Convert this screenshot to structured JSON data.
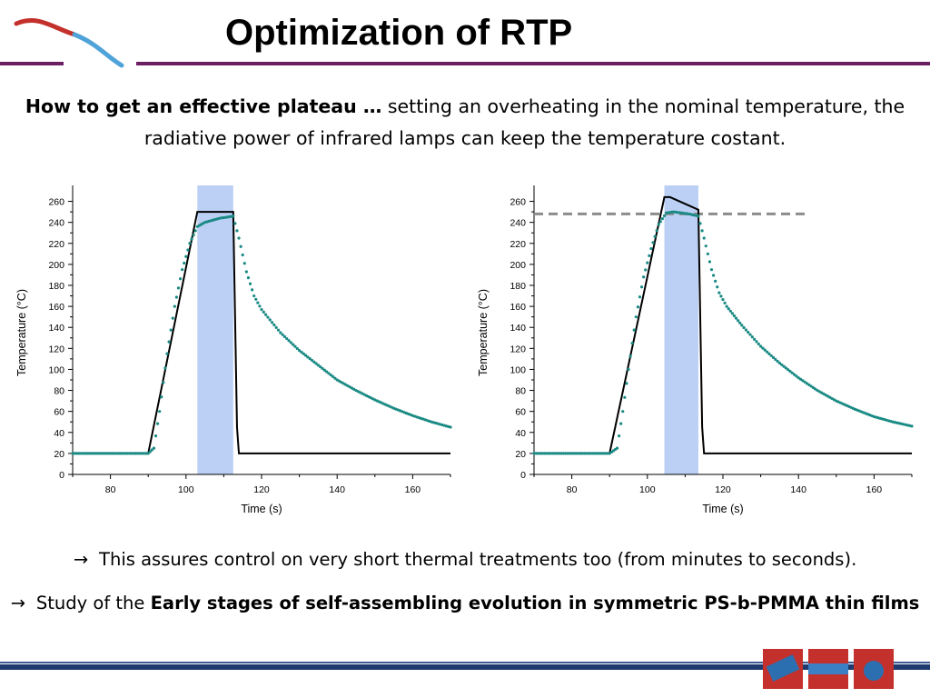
{
  "slide": {
    "title": "Optimization of RTP",
    "intro_bold": "How to get an effective plateau …",
    "intro_rest": " setting an overheating in the nominal temperature, the radiative power of infrared lamps can keep the temperature costant.",
    "bullet_arrow": "→",
    "bullet1": "This assures  control on very short thermal treatments too (from minutes to seconds).",
    "bullet2_prefix": "Study of the ",
    "bullet2_bold": "Early stages of self-assembling evolution in symmetric PS-b-PMMA thin  films"
  },
  "colors": {
    "title_rule": "#6b1f62",
    "footer_bar": "#1f3a6e",
    "setpoint_line": "#000000",
    "measured_points": "#1a8a84",
    "plateau_band": "#bcd0f5",
    "overheat_reference": "#8c8c8c"
  },
  "chart_data": [
    {
      "type": "line",
      "xlabel": "Time (s)",
      "ylabel": "Temperature (°C)",
      "xlim": [
        70,
        170
      ],
      "ylim": [
        0,
        270
      ],
      "xticks": [
        80,
        100,
        120,
        140,
        160
      ],
      "yticks": [
        0,
        20,
        40,
        60,
        80,
        100,
        120,
        140,
        160,
        180,
        200,
        220,
        240,
        260
      ],
      "grid": false,
      "shaded_interval": [
        103,
        112.5
      ],
      "series": [
        {
          "style": "line",
          "color": "#000000",
          "x": [
            70,
            90,
            103,
            112.5,
            113.5,
            114,
            170
          ],
          "y": [
            20,
            20,
            250,
            250,
            45,
            20,
            20
          ]
        },
        {
          "style": "points",
          "color": "#1a8a84",
          "x": [
            70,
            75,
            80,
            85,
            90,
            91.5,
            93,
            95,
            97,
            99,
            101,
            103,
            105,
            107,
            109,
            111,
            112.5,
            114,
            116,
            118,
            120,
            125,
            130,
            135,
            140,
            145,
            150,
            155,
            160,
            165,
            170
          ],
          "y": [
            20,
            20,
            20,
            20,
            20,
            25,
            60,
            115,
            160,
            195,
            220,
            236,
            240,
            242,
            244,
            245,
            246,
            225,
            193,
            170,
            157,
            135,
            118,
            104,
            90,
            80,
            71,
            63,
            56,
            50,
            45
          ]
        }
      ]
    },
    {
      "type": "line",
      "xlabel": "Time (s)",
      "ylabel": "Temperature (°C)",
      "xlim": [
        70,
        170
      ],
      "ylim": [
        0,
        270
      ],
      "xticks": [
        80,
        100,
        120,
        140,
        160
      ],
      "yticks": [
        0,
        20,
        40,
        60,
        80,
        100,
        120,
        140,
        160,
        180,
        200,
        220,
        240,
        260
      ],
      "grid": false,
      "shaded_interval": [
        104.5,
        113.5
      ],
      "reference_line": {
        "y": 248,
        "x": [
          70,
          142
        ],
        "style": "dashed"
      },
      "series": [
        {
          "style": "line",
          "color": "#000000",
          "x": [
            70,
            90,
            104.5,
            106,
            113.5,
            114.5,
            115,
            170
          ],
          "y": [
            20,
            20,
            264,
            264,
            252,
            45,
            20,
            20
          ]
        },
        {
          "style": "points",
          "color": "#1a8a84",
          "x": [
            70,
            75,
            80,
            85,
            90,
            92,
            93.5,
            95,
            97,
            99,
            101,
            103,
            105,
            107,
            109,
            111,
            113.5,
            115,
            117,
            119,
            121,
            125,
            130,
            135,
            140,
            145,
            150,
            155,
            160,
            165,
            170
          ],
          "y": [
            20,
            20,
            20,
            20,
            20,
            25,
            60,
            100,
            150,
            188,
            215,
            238,
            249,
            250,
            249,
            248,
            246,
            225,
            195,
            173,
            160,
            142,
            122,
            106,
            92,
            80,
            70,
            62,
            55,
            50,
            46
          ]
        }
      ]
    }
  ]
}
